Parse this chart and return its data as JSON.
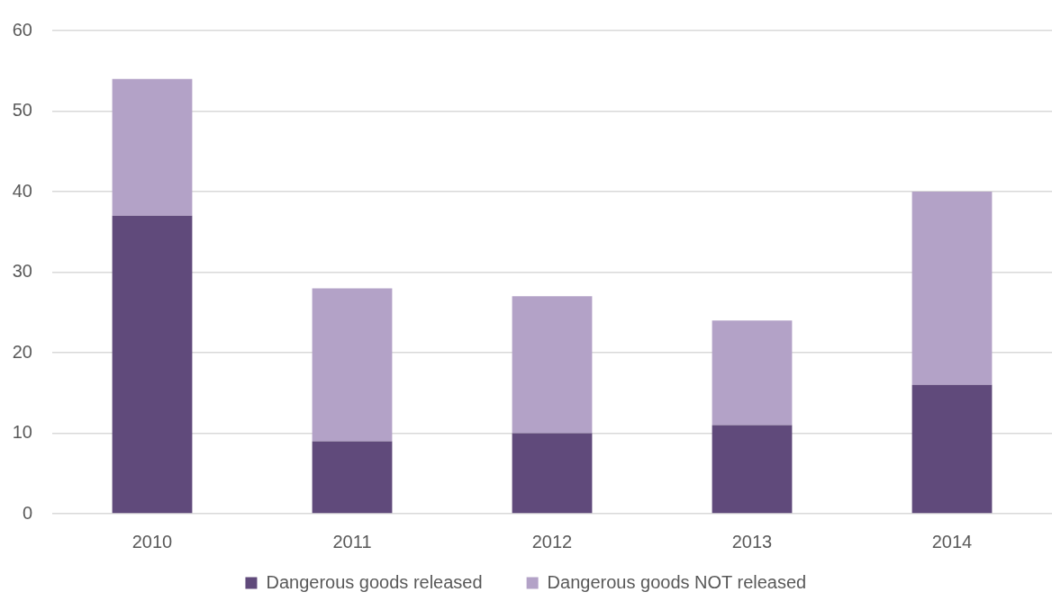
{
  "chart_data": {
    "type": "bar",
    "stacked": true,
    "categories": [
      "2010",
      "2011",
      "2012",
      "2013",
      "2014"
    ],
    "series": [
      {
        "name": "Dangerous goods released",
        "color": "#604a7b",
        "values": [
          37,
          9,
          10,
          11,
          16
        ]
      },
      {
        "name": "Dangerous goods NOT released",
        "color": "#b3a2c7",
        "values": [
          17,
          19,
          17,
          13,
          24
        ]
      }
    ],
    "ylim": [
      0,
      60
    ],
    "yticks": [
      0,
      10,
      20,
      30,
      40,
      50,
      60
    ],
    "grid": "y",
    "legend": "bottom"
  }
}
